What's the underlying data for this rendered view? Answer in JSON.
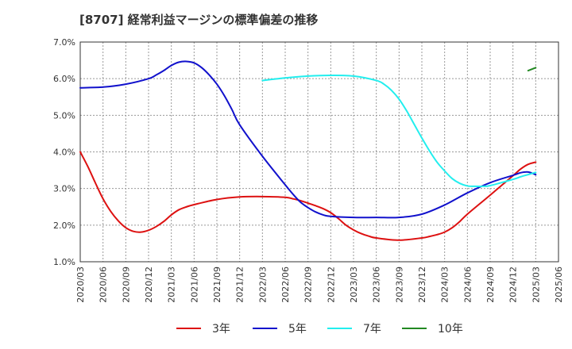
{
  "chart_data": {
    "type": "line",
    "title": "[8707]  経常利益マージンの標準偏差の推移",
    "xlabel": "",
    "ylabel": "",
    "ylim": [
      1.0,
      7.0
    ],
    "y_ticks": [
      "1.0%",
      "2.0%",
      "3.0%",
      "4.0%",
      "5.0%",
      "6.0%",
      "7.0%"
    ],
    "x_ticks": [
      "2020/03",
      "2020/06",
      "2020/09",
      "2020/12",
      "2021/03",
      "2021/06",
      "2021/09",
      "2021/12",
      "2022/03",
      "2022/06",
      "2022/09",
      "2022/12",
      "2023/03",
      "2023/06",
      "2023/09",
      "2023/12",
      "2024/03",
      "2024/06",
      "2024/09",
      "2024/12",
      "2025/03",
      "2025/06"
    ],
    "grid": true,
    "legend_position": "bottom",
    "series": [
      {
        "name": "3年",
        "color": "#dd1111",
        "x": [
          "2020/03",
          "2020/04",
          "2020/05",
          "2020/06",
          "2020/07",
          "2020/08",
          "2020/09",
          "2020/10",
          "2020/11",
          "2020/12",
          "2021/01",
          "2021/02",
          "2021/03",
          "2021/04",
          "2021/05",
          "2021/06",
          "2021/09",
          "2021/12",
          "2022/03",
          "2022/06",
          "2022/07",
          "2022/08",
          "2022/09",
          "2022/10",
          "2022/11",
          "2022/12",
          "2023/01",
          "2023/02",
          "2023/03",
          "2023/04",
          "2023/05",
          "2023/06",
          "2023/09",
          "2023/12",
          "2024/01",
          "2024/02",
          "2024/03",
          "2024/04",
          "2024/05",
          "2024/06",
          "2024/09",
          "2024/12",
          "2025/01",
          "2025/02",
          "2025/03"
        ],
        "values": [
          4.0,
          3.6,
          3.15,
          2.72,
          2.38,
          2.12,
          1.93,
          1.83,
          1.81,
          1.86,
          1.96,
          2.1,
          2.28,
          2.42,
          2.5,
          2.56,
          2.7,
          2.77,
          2.78,
          2.76,
          2.72,
          2.67,
          2.6,
          2.53,
          2.45,
          2.34,
          2.18,
          2.0,
          1.87,
          1.77,
          1.7,
          1.65,
          1.59,
          1.65,
          1.69,
          1.74,
          1.81,
          1.93,
          2.1,
          2.3,
          2.82,
          3.35,
          3.53,
          3.66,
          3.72
        ]
      },
      {
        "name": "5年",
        "color": "#1111cc",
        "x": [
          "2020/03",
          "2020/06",
          "2020/09",
          "2020/12",
          "2021/01",
          "2021/02",
          "2021/03",
          "2021/04",
          "2021/05",
          "2021/06",
          "2021/07",
          "2021/08",
          "2021/09",
          "2021/10",
          "2021/11",
          "2021/12",
          "2022/03",
          "2022/06",
          "2022/07",
          "2022/08",
          "2022/09",
          "2022/10",
          "2022/11",
          "2022/12",
          "2023/03",
          "2023/06",
          "2023/09",
          "2023/12",
          "2024/03",
          "2024/06",
          "2024/09",
          "2024/12",
          "2025/01",
          "2025/02",
          "2025/03"
        ],
        "values": [
          5.75,
          5.77,
          5.85,
          6.0,
          6.1,
          6.22,
          6.36,
          6.45,
          6.47,
          6.43,
          6.3,
          6.1,
          5.85,
          5.53,
          5.15,
          4.74,
          3.88,
          3.1,
          2.85,
          2.63,
          2.48,
          2.36,
          2.28,
          2.24,
          2.21,
          2.21,
          2.21,
          2.3,
          2.55,
          2.88,
          3.16,
          3.36,
          3.43,
          3.45,
          3.38
        ]
      },
      {
        "name": "7年",
        "color": "#22eeee",
        "x": [
          "2022/03",
          "2022/06",
          "2022/09",
          "2022/12",
          "2023/03",
          "2023/06",
          "2023/07",
          "2023/08",
          "2023/09",
          "2023/10",
          "2023/11",
          "2023/12",
          "2024/01",
          "2024/02",
          "2024/03",
          "2024/04",
          "2024/05",
          "2024/06",
          "2024/07",
          "2024/08",
          "2024/09",
          "2024/12",
          "2025/01",
          "2025/02",
          "2025/03"
        ],
        "values": [
          5.95,
          6.02,
          6.07,
          6.09,
          6.07,
          5.95,
          5.85,
          5.68,
          5.44,
          5.12,
          4.75,
          4.38,
          4.03,
          3.72,
          3.48,
          3.27,
          3.14,
          3.07,
          3.06,
          3.06,
          3.08,
          3.25,
          3.32,
          3.38,
          3.44
        ]
      },
      {
        "name": "10年",
        "color": "#228822",
        "x": [
          "2025/02",
          "2025/03"
        ],
        "values": [
          6.22,
          6.3
        ]
      }
    ]
  }
}
